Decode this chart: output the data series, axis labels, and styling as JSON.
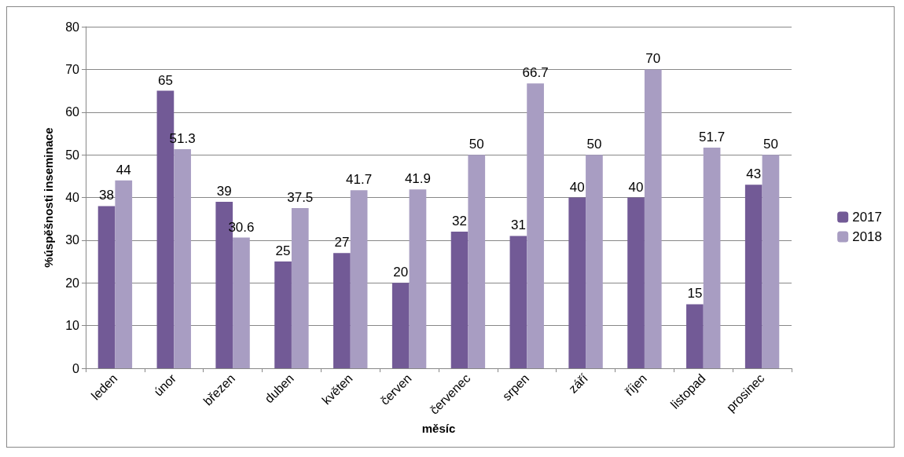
{
  "chart_data": {
    "type": "bar",
    "xlabel": "měsíc",
    "ylabel": "%úspěšnosti inseminace",
    "categories": [
      "leden",
      "únor",
      "březen",
      "duben",
      "květen",
      "červen",
      "červenec",
      "srpen",
      "září",
      "říjen",
      "listopad",
      "prosinec"
    ],
    "series": [
      {
        "name": "2017",
        "color": "#725a96",
        "values": [
          38,
          65,
          39,
          25,
          27,
          20,
          32,
          31,
          40,
          40,
          15,
          43
        ]
      },
      {
        "name": "2018",
        "color": "#a89dc2",
        "values": [
          44,
          51.3,
          30.6,
          37.5,
          41.7,
          41.9,
          50,
          66.7,
          50,
          70,
          51.7,
          50
        ]
      }
    ],
    "ylim": [
      0,
      80
    ],
    "yticks": [
      0,
      10,
      20,
      30,
      40,
      50,
      60,
      70,
      80
    ],
    "grid": "y",
    "legend": "right",
    "data_labels": true
  }
}
